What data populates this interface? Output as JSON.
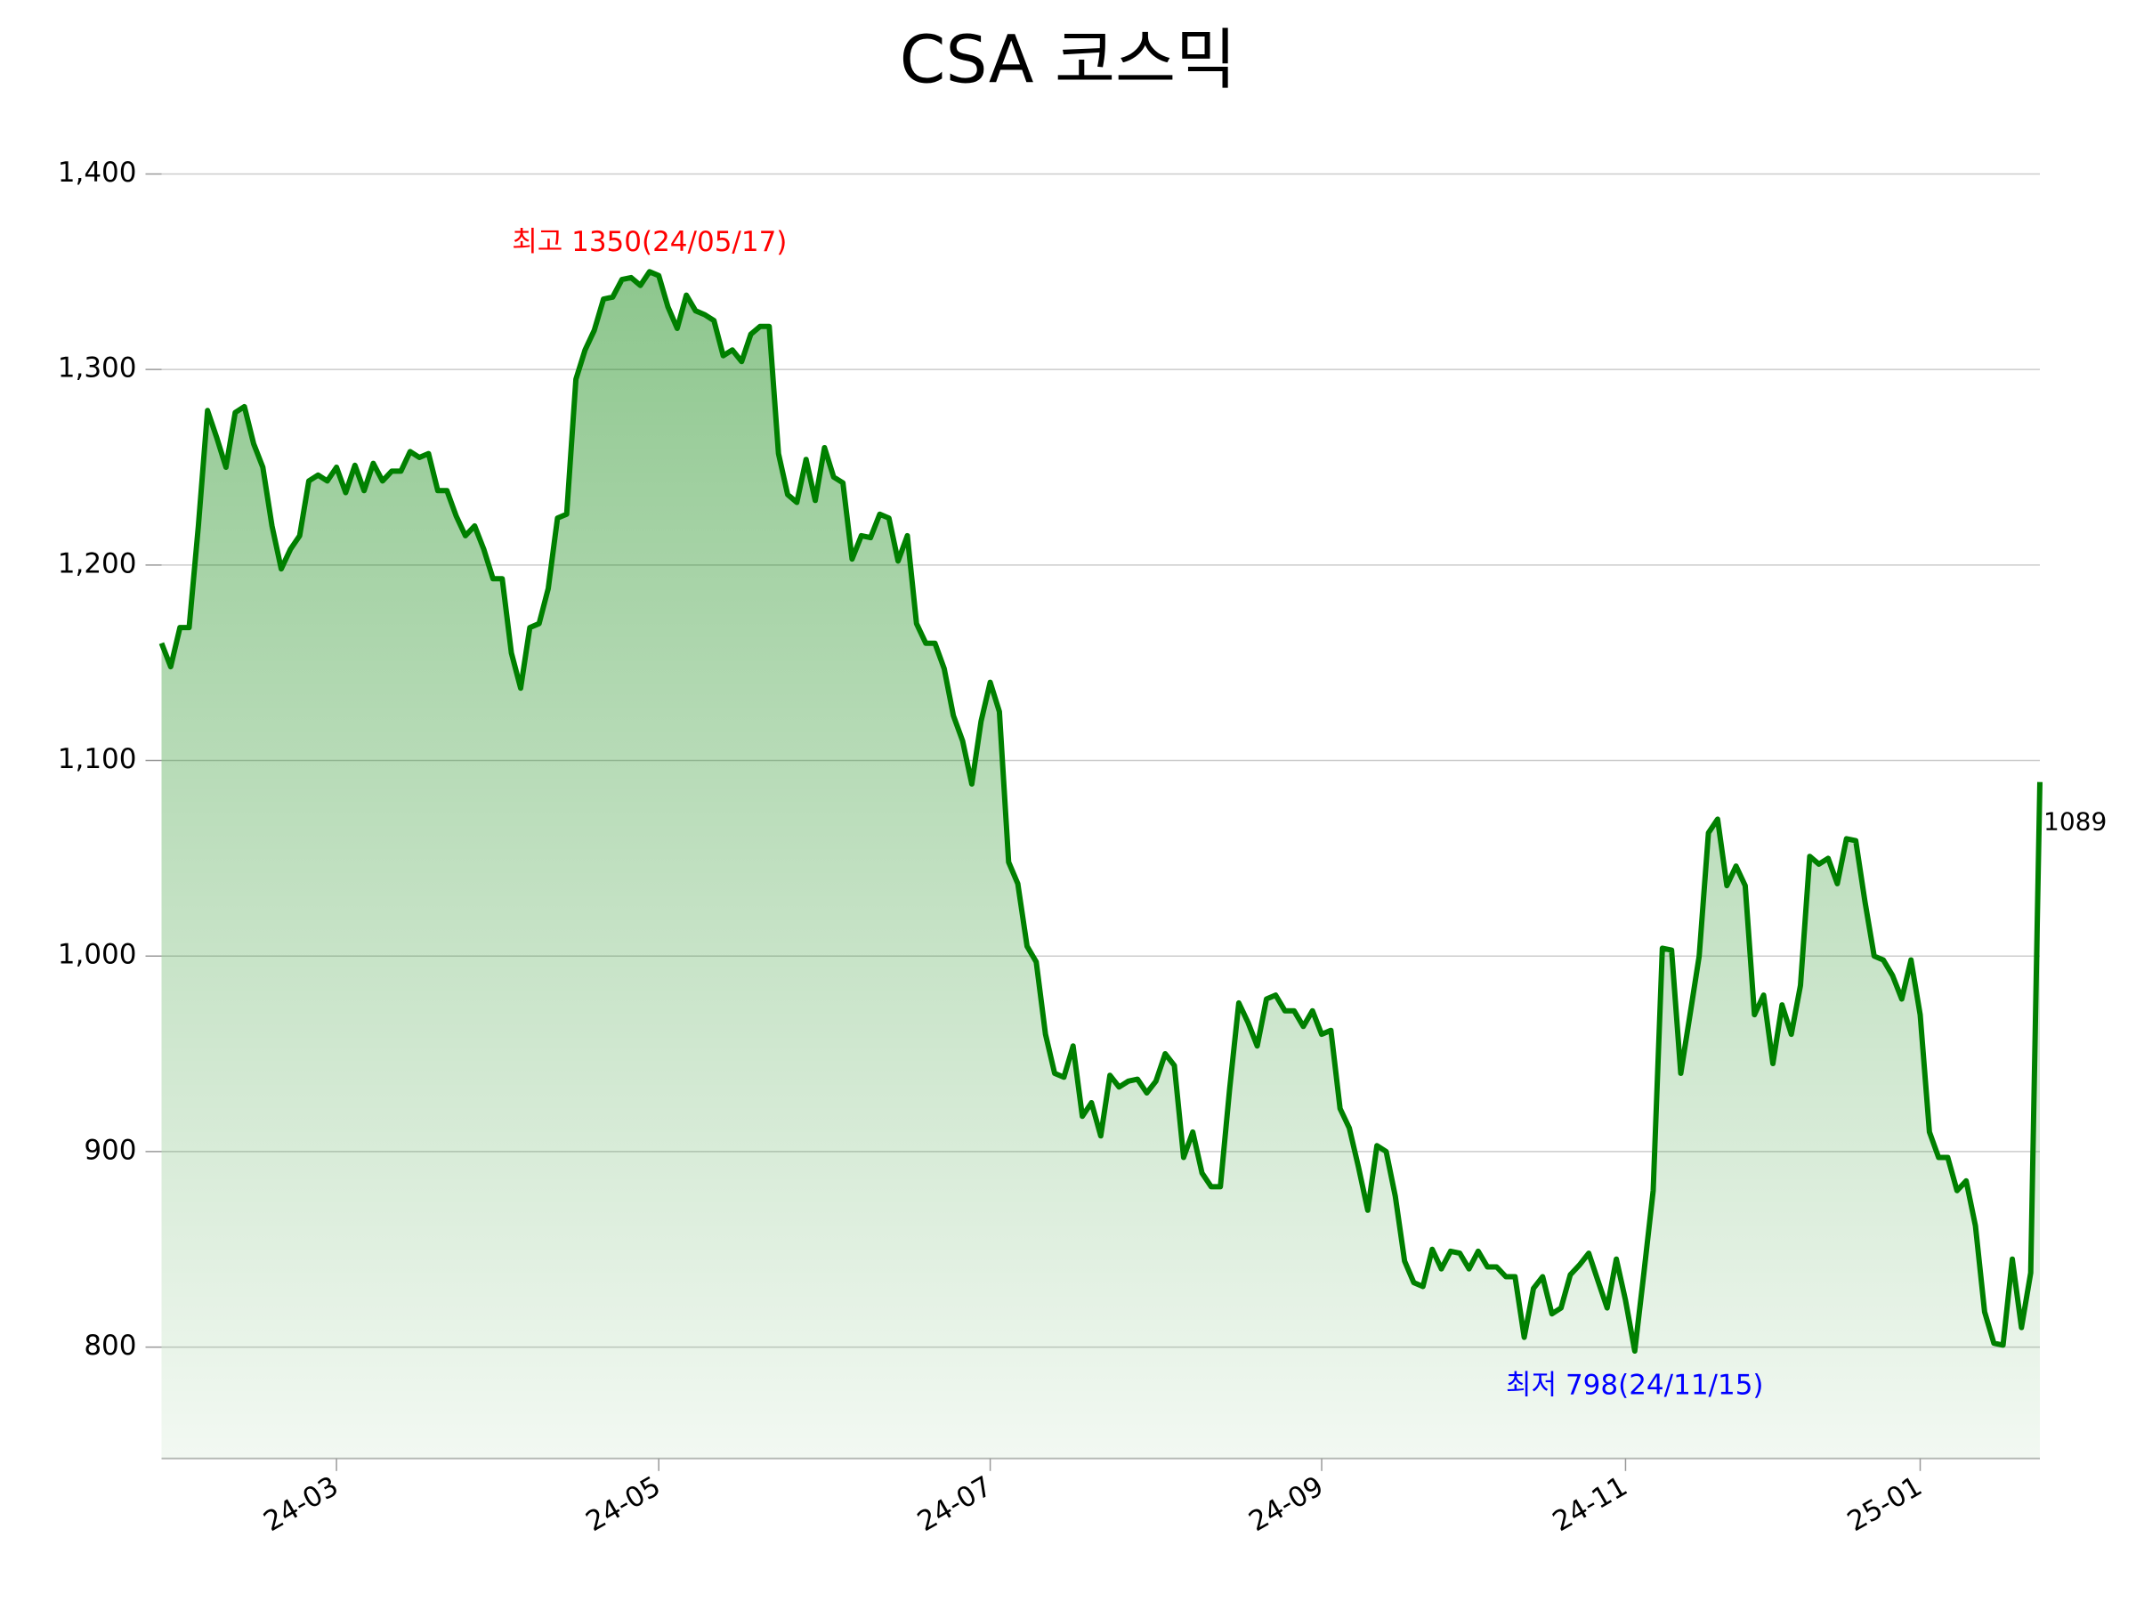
{
  "chart_data": {
    "type": "line",
    "title": "CSA 코스믹",
    "categories": [
      null,
      null,
      null,
      null,
      null,
      null,
      null,
      null,
      null,
      null,
      null,
      null,
      null,
      null,
      null,
      null,
      null,
      null,
      null,
      "24-03",
      null,
      null,
      null,
      null,
      null,
      null,
      null,
      null,
      null,
      null,
      null,
      null,
      null,
      null,
      null,
      null,
      null,
      null,
      null,
      null,
      null,
      null,
      null,
      null,
      null,
      null,
      null,
      null,
      null,
      null,
      null,
      null,
      null,
      null,
      "24-05",
      null,
      null,
      null,
      null,
      null,
      null,
      null,
      null,
      null,
      null,
      null,
      null,
      null,
      null,
      null,
      null,
      null,
      null,
      null,
      null,
      null,
      null,
      null,
      null,
      null,
      null,
      null,
      null,
      null,
      null,
      null,
      null,
      null,
      null,
      null,
      "24-07",
      null,
      null,
      null,
      null,
      null,
      null,
      null,
      null,
      null,
      null,
      null,
      null,
      null,
      null,
      null,
      null,
      null,
      null,
      null,
      null,
      null,
      null,
      null,
      null,
      null,
      null,
      null,
      null,
      null,
      null,
      null,
      null,
      null,
      null,
      null,
      "24-09",
      null,
      null,
      null,
      null,
      null,
      null,
      null,
      null,
      null,
      null,
      null,
      null,
      null,
      null,
      null,
      null,
      null,
      null,
      null,
      null,
      null,
      null,
      null,
      null,
      null,
      null,
      null,
      null,
      null,
      null,
      null,
      null,
      "24-11",
      null,
      null,
      null,
      null,
      null,
      null,
      null,
      null,
      null,
      null,
      null,
      null,
      null,
      null,
      null,
      null,
      null,
      null,
      null,
      null,
      null,
      null,
      null,
      null,
      null,
      null,
      null,
      null,
      null,
      null,
      null,
      "25-01",
      null,
      null,
      null,
      null,
      null,
      null,
      null,
      null,
      null,
      null,
      null,
      null,
      null
    ],
    "values": [
      1160,
      1148,
      1168,
      1168,
      1220,
      1279,
      1265,
      1250,
      1278,
      1281,
      1262,
      1250,
      1220,
      1198,
      1208,
      1215,
      1243,
      1246,
      1243,
      1250,
      1237,
      1251,
      1238,
      1252,
      1243,
      1248,
      1248,
      1258,
      1255,
      1257,
      1238,
      1238,
      1225,
      1215,
      1220,
      1208,
      1193,
      1193,
      1155,
      1137,
      1168,
      1170,
      1188,
      1224,
      1226,
      1295,
      1310,
      1320,
      1336,
      1337,
      1346,
      1347,
      1343,
      1350,
      1348,
      1332,
      1321,
      1338,
      1330,
      1328,
      1325,
      1307,
      1310,
      1304,
      1318,
      1322,
      1322,
      1257,
      1236,
      1232,
      1254,
      1233,
      1260,
      1245,
      1242,
      1203,
      1215,
      1214,
      1226,
      1224,
      1202,
      1215,
      1170,
      1160,
      1160,
      1147,
      1123,
      1110,
      1088,
      1120,
      1140,
      1125,
      1048,
      1037,
      1005,
      997,
      960,
      940,
      938,
      954,
      918,
      925,
      908,
      939,
      933,
      936,
      937,
      930,
      936,
      950,
      944,
      897,
      910,
      889,
      882,
      882,
      932,
      976,
      966,
      954,
      978,
      980,
      972,
      972,
      964,
      972,
      960,
      962,
      922,
      912,
      892,
      870,
      903,
      900,
      877,
      844,
      833,
      831,
      850,
      840,
      849,
      848,
      840,
      849,
      841,
      841,
      836,
      836,
      805,
      830,
      836,
      817,
      820,
      837,
      842,
      848,
      834,
      820,
      845,
      824,
      798,
      838,
      880,
      1004,
      1003,
      940,
      970,
      1000,
      1063,
      1070,
      1036,
      1046,
      1036,
      970,
      980,
      945,
      975,
      960,
      985,
      1051,
      1047,
      1050,
      1037,
      1060,
      1059,
      1028,
      1000,
      998,
      990,
      978,
      998,
      970,
      910,
      897,
      897,
      880,
      885,
      862,
      818,
      802,
      801,
      845,
      810,
      838,
      1089
    ],
    "color": "#008000",
    "ylim": [
      743,
      1420
    ],
    "yticks": [
      800,
      900,
      {
        "value": 1000,
        "label": "1,000"
      },
      {
        "value": 1100,
        "label": "1,100"
      },
      {
        "value": 1200,
        "label": "1,200"
      },
      {
        "value": 1300,
        "label": "1,300"
      },
      {
        "value": 1400,
        "label": "1,400"
      }
    ],
    "grid": true,
    "annotations": [
      {
        "text": "최고 1350(24/05/17)",
        "color": "#ff0000"
      },
      {
        "text": "최저 798(24/11/15)",
        "color": "#0000ff"
      }
    ]
  }
}
